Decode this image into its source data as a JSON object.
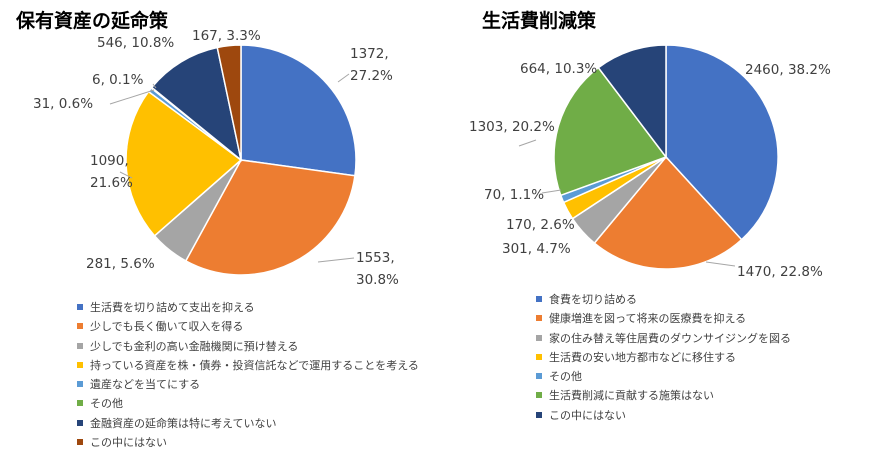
{
  "chart_data": [
    {
      "type": "pie",
      "title": "保有資産の延命策",
      "series": [
        {
          "label": "生活費を切り詰めて支出を抑える",
          "value": 1372,
          "pct": "27.2%",
          "color": "#4472C4"
        },
        {
          "label": "少しでも長く働いて収入を得る",
          "value": 1553,
          "pct": "30.8%",
          "color": "#ED7D31"
        },
        {
          "label": "少しでも金利の高い金融機関に預け替える",
          "value": 281,
          "pct": "5.6%",
          "color": "#A5A5A5"
        },
        {
          "label": "持っている資産を株・債券・投資信託などで運用することを考える",
          "value": 1090,
          "pct": "21.6%",
          "color": "#FFC000"
        },
        {
          "label": "遺産などを当てにする",
          "value": 31,
          "pct": "0.6%",
          "color": "#5B9BD5"
        },
        {
          "label": "その他",
          "value": 6,
          "pct": "0.1%",
          "color": "#70AD47"
        },
        {
          "label": "金融資産の延命策は特に考えていない",
          "value": 546,
          "pct": "10.8%",
          "color": "#264478"
        },
        {
          "label": "この中にはない",
          "value": 167,
          "pct": "3.3%",
          "color": "#9E480E"
        }
      ]
    },
    {
      "type": "pie",
      "title": "生活費削減策",
      "series": [
        {
          "label": "食費を切り詰める",
          "value": 2460,
          "pct": "38.2%",
          "color": "#4472C4"
        },
        {
          "label": "健康増進を図って将来の医療費を抑える",
          "value": 1470,
          "pct": "22.8%",
          "color": "#ED7D31"
        },
        {
          "label": "家の住み替え等住居費のダウンサイジングを図る",
          "value": 301,
          "pct": "4.7%",
          "color": "#A5A5A5"
        },
        {
          "label": "生活費の安い地方都市などに移住する",
          "value": 170,
          "pct": "2.6%",
          "color": "#FFC000"
        },
        {
          "label": "その他",
          "value": 70,
          "pct": "1.1%",
          "color": "#5B9BD5"
        },
        {
          "label": "生活費削減に貢献する施策はない",
          "value": 1303,
          "pct": "20.2%",
          "color": "#70AD47"
        },
        {
          "label": "この中にはない",
          "value": 664,
          "pct": "10.3%",
          "color": "#264478"
        }
      ]
    }
  ]
}
